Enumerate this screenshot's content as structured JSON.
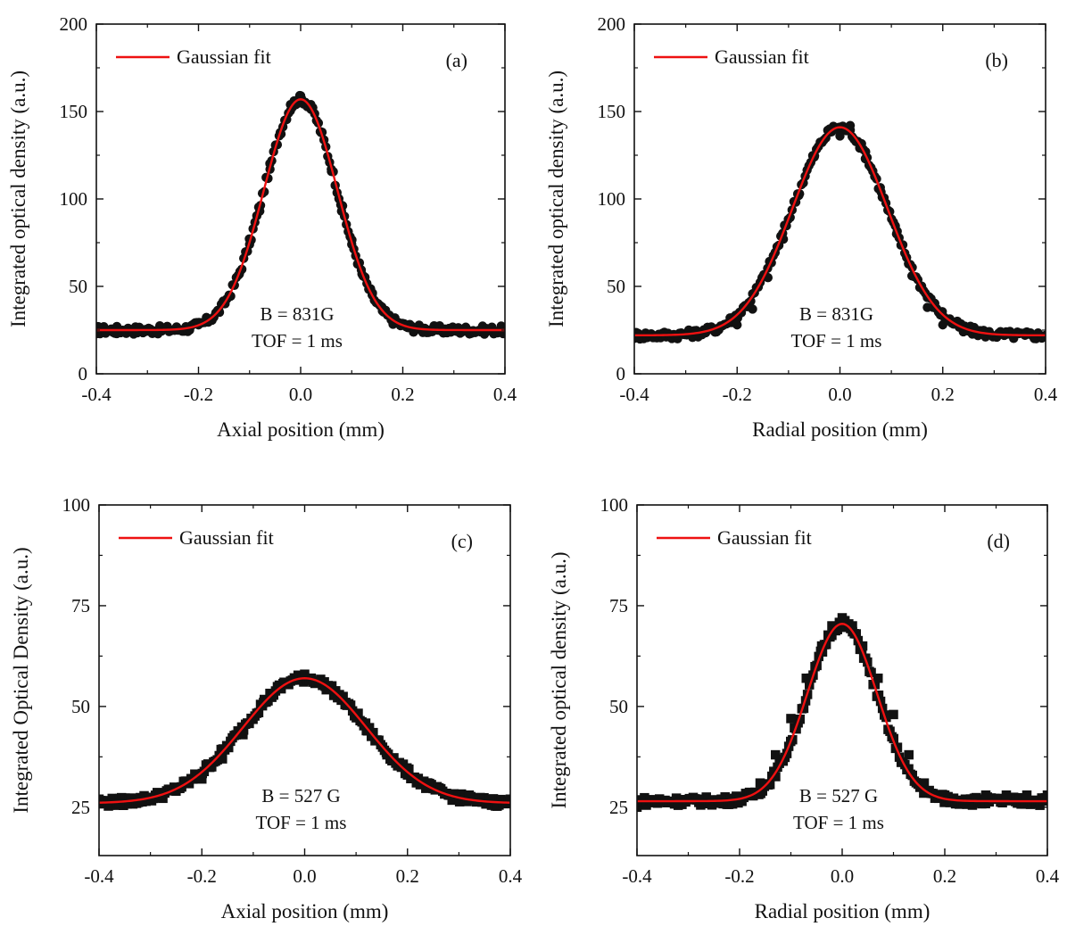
{
  "figure": {
    "colors": {
      "fit": "#ee1111",
      "marker": "#111111",
      "axis": "#111111"
    }
  },
  "chart_data": [
    {
      "id": "a",
      "type": "scatter",
      "marker": "circle",
      "panel_label": "(a)",
      "title": "",
      "xlabel": "Axial position (mm)",
      "ylabel": "Integrated optical density (a.u.)",
      "xlim": [
        -0.4,
        0.4
      ],
      "ylim": [
        0,
        200
      ],
      "xticks": [
        -0.4,
        -0.2,
        0.0,
        0.2,
        0.4
      ],
      "xtick_labels": [
        "-0.4",
        "-0.2",
        "0.0",
        "0.2",
        "0.4"
      ],
      "yticks": [
        0,
        50,
        100,
        150,
        200
      ],
      "ytick_labels": [
        "0",
        "50",
        "100",
        "150",
        "200"
      ],
      "legend": {
        "entries": [
          "Gaussian fit"
        ],
        "location": "top-left"
      },
      "annotations": [
        "B = 831G",
        "TOF = 1 ms"
      ],
      "fit": {
        "model": "gaussian",
        "baseline": 25,
        "amplitude": 132,
        "center": 0.0,
        "sigma": 0.072
      },
      "series": [
        {
          "name": "Data",
          "style": "points",
          "x": [
            -0.4,
            -0.36,
            -0.32,
            -0.28,
            -0.24,
            -0.2,
            -0.18,
            -0.16,
            -0.14,
            -0.12,
            -0.1,
            -0.08,
            -0.06,
            -0.04,
            -0.02,
            0.0,
            0.02,
            0.04,
            0.06,
            0.08,
            0.1,
            0.12,
            0.14,
            0.16,
            0.18,
            0.2,
            0.24,
            0.28,
            0.32,
            0.36,
            0.4
          ],
          "y": [
            23,
            23,
            24,
            24,
            25,
            28,
            31,
            36,
            45,
            57,
            74,
            93,
            117,
            138,
            154,
            159,
            154,
            138,
            117,
            93,
            74,
            57,
            45,
            36,
            31,
            28,
            26,
            25,
            25,
            24,
            24
          ]
        },
        {
          "name": "Gaussian fit",
          "style": "line",
          "x": [
            -0.4,
            -0.3,
            -0.2,
            -0.16,
            -0.12,
            -0.08,
            -0.04,
            0.0,
            0.04,
            0.08,
            0.12,
            0.16,
            0.2,
            0.3,
            0.4
          ],
          "y": [
            25,
            25,
            31,
            36.5,
            57.5,
            95.6,
            139.6,
            157,
            139.6,
            95.6,
            57.5,
            36.5,
            31,
            25,
            25
          ]
        }
      ]
    },
    {
      "id": "b",
      "type": "scatter",
      "marker": "circle",
      "panel_label": "(b)",
      "title": "",
      "xlabel": "Radial position (mm)",
      "ylabel": "Integrated optical density (a.u.)",
      "xlim": [
        -0.4,
        0.4
      ],
      "ylim": [
        0,
        200
      ],
      "xticks": [
        -0.4,
        -0.2,
        0.0,
        0.2,
        0.4
      ],
      "xtick_labels": [
        "-0.4",
        "-0.2",
        "0.0",
        "0.2",
        "0.4"
      ],
      "yticks": [
        0,
        50,
        100,
        150,
        200
      ],
      "ytick_labels": [
        "0",
        "50",
        "100",
        "150",
        "200"
      ],
      "legend": {
        "entries": [
          "Gaussian fit"
        ],
        "location": "top-left"
      },
      "annotations": [
        "B = 831G",
        "TOF = 1 ms"
      ],
      "fit": {
        "model": "gaussian",
        "baseline": 22,
        "amplitude": 119,
        "center": 0.0,
        "sigma": 0.093
      },
      "series": [
        {
          "name": "Data",
          "style": "points",
          "x": [
            -0.4,
            -0.36,
            -0.32,
            -0.28,
            -0.24,
            -0.2,
            -0.17,
            -0.14,
            -0.11,
            -0.08,
            -0.05,
            -0.02,
            0.0,
            0.02,
            0.05,
            0.08,
            0.11,
            0.14,
            0.17,
            0.2,
            0.24,
            0.28,
            0.32,
            0.36,
            0.4
          ],
          "y": [
            21,
            21,
            22,
            23,
            24,
            28,
            37,
            55,
            77,
            102,
            124,
            140,
            136,
            142,
            127,
            104,
            80,
            56,
            38,
            28,
            24,
            23,
            23,
            22,
            22
          ]
        },
        {
          "name": "Gaussian fit",
          "style": "line",
          "x": [
            -0.4,
            -0.3,
            -0.2,
            -0.15,
            -0.1,
            -0.05,
            0.0,
            0.05,
            0.1,
            0.15,
            0.2,
            0.3,
            0.4
          ],
          "y": [
            22,
            22.7,
            33,
            55.5,
            97.2,
            129.2,
            141,
            129.2,
            97.2,
            55.5,
            33,
            22.7,
            22
          ]
        }
      ]
    },
    {
      "id": "c",
      "type": "scatter",
      "marker": "square",
      "panel_label": "(c)",
      "title": "",
      "xlabel": "Axial position (mm)",
      "ylabel": "Integrated Optical Density (a.u.)",
      "xlim": [
        -0.4,
        0.4
      ],
      "ylim": [
        13,
        100
      ],
      "xticks": [
        -0.4,
        -0.2,
        0.0,
        0.2,
        0.4
      ],
      "xtick_labels": [
        "-0.4",
        "-0.2",
        "0.0",
        "0.2",
        "0.4"
      ],
      "yticks": [
        25,
        50,
        75,
        100
      ],
      "ytick_labels": [
        "25",
        "50",
        "75",
        "100"
      ],
      "legend": {
        "entries": [
          "Gaussian fit"
        ],
        "location": "top-left"
      },
      "annotations": [
        "B = 527 G",
        "TOF = 1 ms"
      ],
      "fit": {
        "model": "gaussian",
        "baseline": 26,
        "amplitude": 31,
        "center": 0.0,
        "sigma": 0.12
      },
      "series": [
        {
          "name": "Data",
          "style": "points",
          "x": [
            -0.4,
            -0.36,
            -0.32,
            -0.28,
            -0.24,
            -0.2,
            -0.16,
            -0.12,
            -0.08,
            -0.04,
            0.0,
            0.04,
            0.08,
            0.12,
            0.16,
            0.2,
            0.24,
            0.28,
            0.32,
            0.36,
            0.4
          ],
          "y": [
            27,
            26,
            27,
            28,
            30,
            32,
            37,
            43,
            51,
            56,
            58,
            55,
            51,
            44,
            38,
            33,
            30,
            28,
            28,
            27,
            27
          ]
        },
        {
          "name": "Gaussian fit",
          "style": "line",
          "x": [
            -0.4,
            -0.3,
            -0.2,
            -0.15,
            -0.1,
            -0.05,
            0.0,
            0.05,
            0.1,
            0.15,
            0.2,
            0.3,
            0.4
          ],
          "y": [
            26.1,
            27.4,
            33.7,
            40.2,
            48.6,
            54.8,
            57,
            54.8,
            48.6,
            40.2,
            33.7,
            27.4,
            26.1
          ]
        }
      ]
    },
    {
      "id": "d",
      "type": "scatter",
      "marker": "square",
      "panel_label": "(d)",
      "title": "",
      "xlabel": "Radial position (mm)",
      "ylabel": "Integrated optical density (a.u.)",
      "xlim": [
        -0.4,
        0.4
      ],
      "ylim": [
        13,
        100
      ],
      "xticks": [
        -0.4,
        -0.2,
        0.0,
        0.2,
        0.4
      ],
      "xtick_labels": [
        "-0.4",
        "-0.2",
        "0.0",
        "0.2",
        "0.4"
      ],
      "yticks": [
        25,
        50,
        75,
        100
      ],
      "ytick_labels": [
        "25",
        "50",
        "75",
        "100"
      ],
      "legend": {
        "entries": [
          "Gaussian fit"
        ],
        "location": "top-left"
      },
      "annotations": [
        "B = 527 G",
        "TOF = 1 ms"
      ],
      "fit": {
        "model": "gaussian",
        "baseline": 26.5,
        "amplitude": 44,
        "center": 0.0,
        "sigma": 0.068
      },
      "series": [
        {
          "name": "Data",
          "style": "points",
          "x": [
            -0.4,
            -0.36,
            -0.32,
            -0.28,
            -0.24,
            -0.2,
            -0.16,
            -0.13,
            -0.1,
            -0.07,
            -0.04,
            -0.02,
            0.0,
            0.02,
            0.04,
            0.07,
            0.1,
            0.13,
            0.16,
            0.2,
            0.24,
            0.28,
            0.32,
            0.36,
            0.4
          ],
          "y": [
            25,
            26,
            26,
            27,
            26,
            27,
            31,
            38,
            47,
            57,
            65,
            70,
            72,
            70,
            65,
            57,
            48,
            38,
            31,
            28,
            27,
            28,
            28,
            28,
            28
          ]
        },
        {
          "name": "Gaussian fit",
          "style": "line",
          "x": [
            -0.4,
            -0.3,
            -0.2,
            -0.15,
            -0.1,
            -0.05,
            0.0,
            0.05,
            0.1,
            0.15,
            0.2,
            0.3,
            0.4
          ],
          "y": [
            26.5,
            26.5,
            26.8,
            30.1,
            40.2,
            59.4,
            70.5,
            59.4,
            40.2,
            30.1,
            26.8,
            26.5,
            26.5
          ]
        }
      ]
    }
  ]
}
